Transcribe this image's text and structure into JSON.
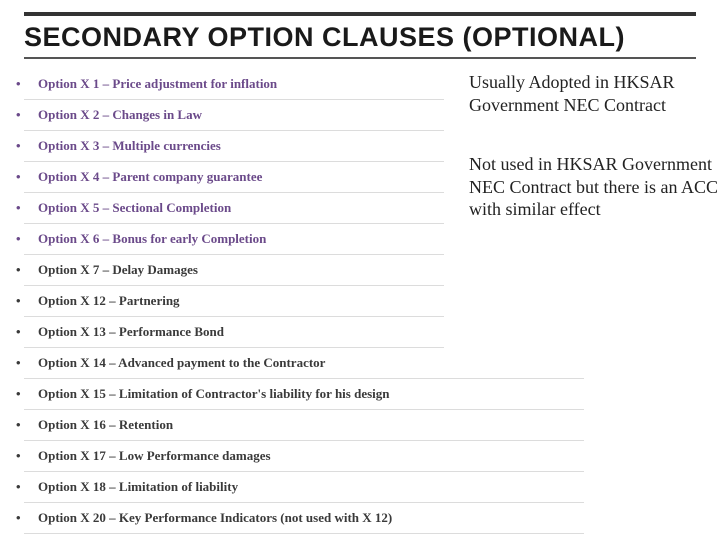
{
  "title": "SECONDARY OPTION CLAUSES (OPTIONAL)",
  "bullets": [
    {
      "text": "Option X 1 – Price adjustment for inflation",
      "color": "purple",
      "wide": false
    },
    {
      "text": "Option X 2 – Changes in Law",
      "color": "purple",
      "wide": false
    },
    {
      "text": "Option X 3 – Multiple currencies",
      "color": "purple",
      "wide": false
    },
    {
      "text": "Option X 4 – Parent company guarantee",
      "color": "purple",
      "wide": false
    },
    {
      "text": "Option X 5 – Sectional Completion",
      "color": "purple",
      "wide": false
    },
    {
      "text": "Option X 6 – Bonus for early Completion",
      "color": "purple",
      "wide": false
    },
    {
      "text": "Option X 7 – Delay Damages",
      "color": "dark",
      "wide": false
    },
    {
      "text": "Option X 12 – Partnering",
      "color": "dark",
      "wide": false
    },
    {
      "text": "Option X 13 – Performance Bond",
      "color": "dark",
      "wide": false
    },
    {
      "text": "Option X 14 – Advanced payment to the Contractor",
      "color": "dark",
      "wide": true
    },
    {
      "text": "Option X 15 – Limitation of Contractor's liability for his design",
      "color": "dark",
      "wide": true
    },
    {
      "text": "Option X 16 – Retention",
      "color": "dark",
      "wide": true
    },
    {
      "text": "Option X 17 – Low Performance damages",
      "color": "dark",
      "wide": true
    },
    {
      "text": "Option X 18 – Limitation of liability",
      "color": "dark",
      "wide": true
    },
    {
      "text": "Option X 20 – Key Performance Indicators (not used with X 12)",
      "color": "dark",
      "wide": true
    }
  ],
  "note1": "Usually Adopted in HKSAR Government NEC Contract",
  "note2": "Not used in HKSAR Government NEC Contract but there is an ACC with similar effect",
  "colors": {
    "title_color": "#1a1a1a",
    "bullet_dark": "#3a3a3a",
    "bullet_purple": "#6b4a8a",
    "divider": "#dcdcdc",
    "rule_top": "#333333",
    "rule_bottom": "#555555",
    "background": "#ffffff"
  },
  "typography": {
    "title_font": "Trebuchet MS",
    "title_size_pt": 20,
    "body_font": "Georgia",
    "bullet_size_pt": 10,
    "note_font": "Times New Roman",
    "note_size_pt": 14
  }
}
